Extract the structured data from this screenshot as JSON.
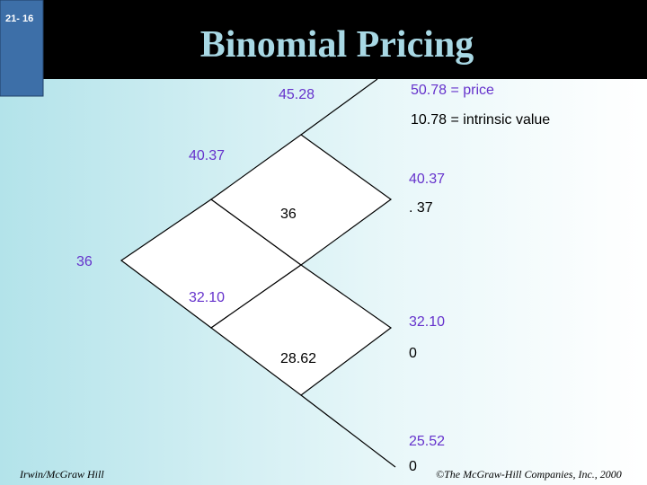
{
  "header": {
    "slide_number": "21- 16",
    "title": "Binomial Pricing"
  },
  "tree": {
    "labels": [
      {
        "text": "45.28",
        "tone": "purple"
      },
      {
        "text": "50.78 = price",
        "tone": "purple"
      },
      {
        "text": "10.78 = intrinsic value",
        "tone": "black"
      },
      {
        "text": "40.37",
        "tone": "purple"
      },
      {
        "text": "40.37",
        "tone": "purple"
      },
      {
        "text": "36",
        "tone": "black"
      },
      {
        "text": ". 37",
        "tone": "black"
      },
      {
        "text": "36",
        "tone": "purple"
      },
      {
        "text": "32.10",
        "tone": "purple"
      },
      {
        "text": "32.10",
        "tone": "purple"
      },
      {
        "text": "28.62",
        "tone": "black"
      },
      {
        "text": "0",
        "tone": "black"
      },
      {
        "text": "25.52",
        "tone": "purple"
      },
      {
        "text": "0",
        "tone": "black"
      }
    ]
  },
  "footer": {
    "left": "Irwin/McGraw Hill",
    "right": "©The McGraw-Hill Companies, Inc., 2000"
  }
}
